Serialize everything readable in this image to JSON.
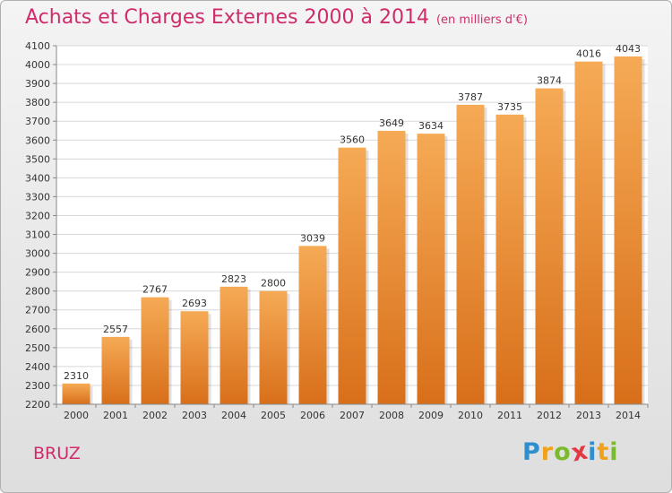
{
  "title": "Achats et Charges Externes 2000 à 2014",
  "unit": "(en milliers d'€)",
  "city": "BRUZ",
  "brand": {
    "letters": [
      "P",
      "r",
      "o",
      "x",
      "i",
      "t",
      "i"
    ],
    "colors": [
      "#2f8fce",
      "#f0a21b",
      "#7cba2d",
      "#e23a43",
      "#2f8fce",
      "#f0a21b",
      "#7cba2d"
    ]
  },
  "colors": {
    "bar_light": "#f6aa55",
    "bar_dark": "#d86f1a",
    "title": "#d02c6c"
  },
  "chart_data": {
    "type": "bar",
    "title": "Achats et Charges Externes 2000 à 2014",
    "ylabel": "en milliers d'€",
    "xlabel": "",
    "categories": [
      "2000",
      "2001",
      "2002",
      "2003",
      "2004",
      "2005",
      "2006",
      "2007",
      "2008",
      "2009",
      "2010",
      "2011",
      "2012",
      "2013",
      "2014"
    ],
    "values": [
      2310,
      2557,
      2767,
      2693,
      2823,
      2800,
      3039,
      3560,
      3649,
      3634,
      3787,
      3735,
      3874,
      4016,
      4043
    ],
    "ylim": [
      2200,
      4100
    ],
    "ytick_step": 100,
    "grid": true
  }
}
